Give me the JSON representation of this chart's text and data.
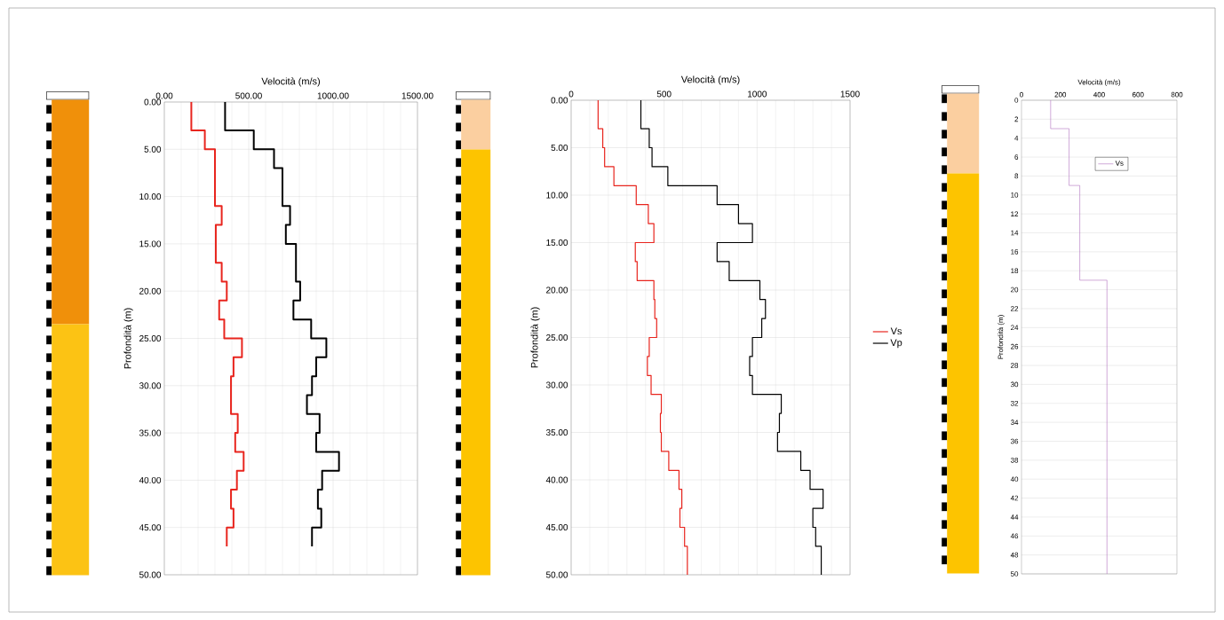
{
  "chart_data": [
    {
      "type": "line",
      "xlabel": "Velocità (m/s)",
      "ylabel": "Profondità (m)",
      "xlim": [
        0,
        1500
      ],
      "ylim": [
        50,
        0
      ],
      "xticks": [
        {
          "value": 0,
          "label": "0.00"
        },
        {
          "value": 500,
          "label": "500.00"
        },
        {
          "value": 1000,
          "label": "1000.00"
        },
        {
          "value": 1500,
          "label": "1500.00"
        }
      ],
      "yticks": [
        {
          "value": 0,
          "label": "0.00"
        },
        {
          "value": 5,
          "label": "5.00"
        },
        {
          "value": 10,
          "label": "10.00"
        },
        {
          "value": 15,
          "label": "15.00"
        },
        {
          "value": 20,
          "label": "20.00"
        },
        {
          "value": 25,
          "label": "25.00"
        },
        {
          "value": 30,
          "label": "30.00"
        },
        {
          "value": 35,
          "label": "35.00"
        },
        {
          "value": 40,
          "label": "40.00"
        },
        {
          "value": 45,
          "label": "45.00"
        },
        {
          "value": 50,
          "label": "50.00"
        }
      ],
      "grid": true,
      "series": [
        {
          "color": "#e8251e",
          "x": [
            160,
            160,
            240,
            240,
            300,
            300,
            340,
            340,
            305,
            305,
            340,
            340,
            370,
            370,
            325,
            325,
            355,
            355,
            460,
            460,
            410,
            410,
            395,
            395,
            435,
            435,
            420,
            420,
            470,
            470,
            430,
            430,
            395,
            395,
            410,
            410,
            370,
            370
          ],
          "values": [
            0,
            3,
            3,
            5,
            5,
            11,
            11,
            13,
            13,
            17,
            17,
            19,
            19,
            21,
            21,
            23,
            23,
            25,
            25,
            27,
            27,
            29,
            29,
            33,
            33,
            35,
            35,
            37,
            37,
            39,
            39,
            41,
            41,
            43,
            43,
            45,
            45,
            47
          ]
        },
        {
          "color": "#000000",
          "x": [
            360,
            360,
            530,
            530,
            650,
            650,
            700,
            700,
            745,
            745,
            720,
            720,
            780,
            780,
            805,
            805,
            765,
            765,
            870,
            870,
            960,
            960,
            900,
            900,
            875,
            875,
            845,
            845,
            920,
            920,
            900,
            900,
            1035,
            1035,
            935,
            935,
            910,
            910,
            930,
            930,
            875,
            875
          ],
          "values": [
            0,
            3,
            3,
            5,
            5,
            7,
            7,
            11,
            11,
            13,
            13,
            15,
            15,
            19,
            19,
            21,
            21,
            23,
            23,
            25,
            25,
            27,
            27,
            29,
            29,
            31,
            31,
            33,
            33,
            35,
            35,
            37,
            37,
            39,
            39,
            41,
            41,
            43,
            43,
            45,
            45,
            47
          ]
        }
      ]
    },
    {
      "type": "line",
      "xlabel": "Velocità (m/s)",
      "ylabel": "Profondità (m)",
      "xlim": [
        0,
        1500
      ],
      "ylim": [
        50,
        0
      ],
      "xticks": [
        0,
        500,
        1000,
        1500
      ],
      "yticks": [
        {
          "value": 0,
          "label": "0.00"
        },
        {
          "value": 5,
          "label": "5.00"
        },
        {
          "value": 10,
          "label": "10.00"
        },
        {
          "value": 15,
          "label": "15.00"
        },
        {
          "value": 20,
          "label": "20.00"
        },
        {
          "value": 25,
          "label": "25.00"
        },
        {
          "value": 30,
          "label": "30.00"
        },
        {
          "value": 35,
          "label": "35.00"
        },
        {
          "value": 40,
          "label": "40.00"
        },
        {
          "value": 45,
          "label": "45.00"
        },
        {
          "value": 50,
          "label": "50.00"
        }
      ],
      "grid": true,
      "legend": "right",
      "series": [
        {
          "name": "Vs",
          "color": "#e8251e",
          "x": [
            145,
            145,
            170,
            170,
            180,
            180,
            230,
            230,
            350,
            350,
            415,
            415,
            445,
            445,
            345,
            345,
            355,
            355,
            445,
            445,
            450,
            450,
            460,
            460,
            420,
            420,
            410,
            410,
            430,
            430,
            485,
            485,
            480,
            480,
            485,
            485,
            525,
            525,
            580,
            580,
            595,
            595,
            585,
            585,
            610,
            610,
            625,
            625
          ],
          "values": [
            0,
            3,
            3,
            5,
            5,
            7,
            7,
            9,
            9,
            11,
            11,
            13,
            13,
            15,
            15,
            17,
            17,
            19,
            19,
            21,
            21,
            23,
            23,
            25,
            25,
            27,
            27,
            29,
            29,
            31,
            31,
            33,
            33,
            35,
            35,
            37,
            37,
            39,
            39,
            41,
            41,
            43,
            43,
            45,
            45,
            47,
            47,
            50
          ]
        },
        {
          "name": "Vp",
          "color": "#000000",
          "x": [
            375,
            375,
            420,
            420,
            435,
            435,
            520,
            520,
            785,
            785,
            900,
            900,
            975,
            975,
            785,
            785,
            850,
            850,
            1015,
            1015,
            1045,
            1045,
            1025,
            1025,
            975,
            975,
            960,
            960,
            975,
            975,
            1130,
            1130,
            1120,
            1120,
            1110,
            1110,
            1235,
            1235,
            1285,
            1285,
            1355,
            1355,
            1300,
            1300,
            1315,
            1315,
            1345,
            1345
          ],
          "values": [
            0,
            3,
            3,
            5,
            5,
            7,
            7,
            9,
            9,
            11,
            11,
            13,
            13,
            15,
            15,
            17,
            17,
            19,
            19,
            21,
            21,
            23,
            23,
            25,
            25,
            27,
            27,
            29,
            29,
            31,
            31,
            33,
            33,
            35,
            35,
            37,
            37,
            39,
            39,
            41,
            41,
            43,
            43,
            45,
            45,
            47,
            47,
            50
          ]
        }
      ]
    },
    {
      "type": "line",
      "xlabel": "Velocità (m/s)",
      "ylabel": "Profondità (m)",
      "xlim": [
        0,
        800
      ],
      "ylim": [
        50,
        0
      ],
      "xticks": [
        0,
        200,
        400,
        600,
        800
      ],
      "yticks": [
        0,
        2,
        4,
        6,
        8,
        10,
        12,
        14,
        16,
        18,
        20,
        22,
        24,
        26,
        28,
        30,
        32,
        34,
        36,
        38,
        40,
        42,
        44,
        46,
        48,
        50
      ],
      "grid": "y",
      "legend": "top",
      "series": [
        {
          "name": "Vs",
          "color": "#b070c0",
          "x": [
            150,
            150,
            245,
            245,
            300,
            300,
            440,
            440
          ],
          "values": [
            0,
            3,
            3,
            9,
            9,
            19,
            19,
            50
          ]
        }
      ]
    }
  ]
}
